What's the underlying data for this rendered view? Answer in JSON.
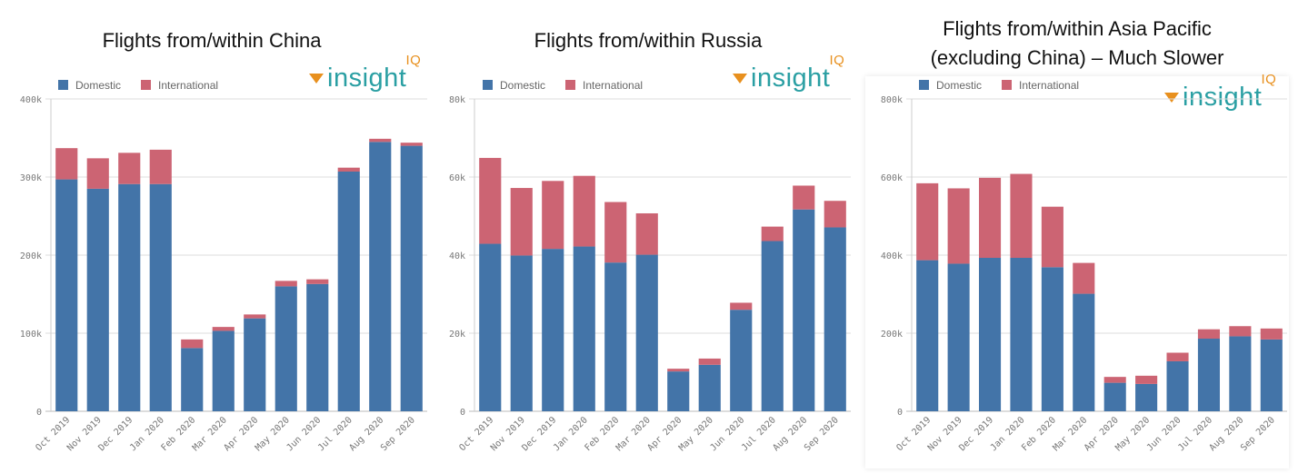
{
  "colors": {
    "domestic": "#4374a8",
    "international": "#cc6473",
    "logo_text": "#2a9fa3",
    "logo_accent": "#e8901e"
  },
  "logo": {
    "text": "insight",
    "superscript": "IQ"
  },
  "chart_data": [
    {
      "type": "bar",
      "stacked": true,
      "title": "Flights from/within China",
      "categories": [
        "Oct 2019",
        "Nov 2019",
        "Dec 2019",
        "Jan 2020",
        "Feb 2020",
        "Mar 2020",
        "Apr 2020",
        "May 2020",
        "Jun 2020",
        "Jul 2020",
        "Aug 2020",
        "Sep 2020"
      ],
      "series": [
        {
          "name": "Domestic",
          "values": [
            297000,
            285000,
            291000,
            291000,
            81000,
            103000,
            119000,
            160000,
            163000,
            307000,
            345000,
            340000
          ]
        },
        {
          "name": "International",
          "values": [
            40000,
            39000,
            40000,
            44000,
            11000,
            5000,
            5000,
            7000,
            6000,
            5000,
            4000,
            4000
          ]
        }
      ],
      "ylim": [
        0,
        400000
      ],
      "yticks": [
        "0",
        "100k",
        "200k",
        "300k",
        "400k"
      ],
      "grid": true,
      "legend": "top-left"
    },
    {
      "type": "bar",
      "stacked": true,
      "title": "Flights from/within Russia",
      "categories": [
        "Oct 2019",
        "Nov 2019",
        "Dec 2019",
        "Jan 2020",
        "Feb 2020",
        "Mar 2020",
        "Apr 2020",
        "May 2020",
        "Jun 2020",
        "Jul 2020",
        "Aug 2020",
        "Sep 2020"
      ],
      "series": [
        {
          "name": "Domestic",
          "values": [
            42900,
            39900,
            41600,
            42200,
            38100,
            40100,
            10200,
            11900,
            26000,
            43600,
            51700,
            47100
          ]
        },
        {
          "name": "International",
          "values": [
            22000,
            17300,
            17400,
            18100,
            15500,
            10600,
            700,
            1600,
            1800,
            3700,
            6100,
            6800
          ]
        }
      ],
      "ylim": [
        0,
        80000
      ],
      "yticks": [
        "0",
        "20k",
        "40k",
        "60k",
        "80k"
      ],
      "grid": true,
      "legend": "top-left"
    },
    {
      "type": "bar",
      "stacked": true,
      "title": "Flights from/within Asia Pacific (excluding China) – Much Slower",
      "title_lines": [
        "Flights from/within Asia Pacific",
        "(excluding China) – Much Slower"
      ],
      "categories": [
        "Oct 2019",
        "Nov 2019",
        "Dec 2019",
        "Jan 2020",
        "Feb 2020",
        "Mar 2020",
        "Apr 2020",
        "May 2020",
        "Jun 2020",
        "Jul 2020",
        "Aug 2020",
        "Sep 2020"
      ],
      "series": [
        {
          "name": "Domestic",
          "values": [
            387000,
            378000,
            393000,
            393000,
            369000,
            301000,
            73000,
            70000,
            128000,
            186000,
            192000,
            184000
          ]
        },
        {
          "name": "International",
          "values": [
            197000,
            193000,
            205000,
            215000,
            155000,
            79000,
            15000,
            21000,
            22000,
            24000,
            26000,
            28000
          ]
        }
      ],
      "ylim": [
        0,
        800000
      ],
      "yticks": [
        "0",
        "200k",
        "400k",
        "600k",
        "800k"
      ],
      "grid": true,
      "legend": "top-left"
    }
  ]
}
